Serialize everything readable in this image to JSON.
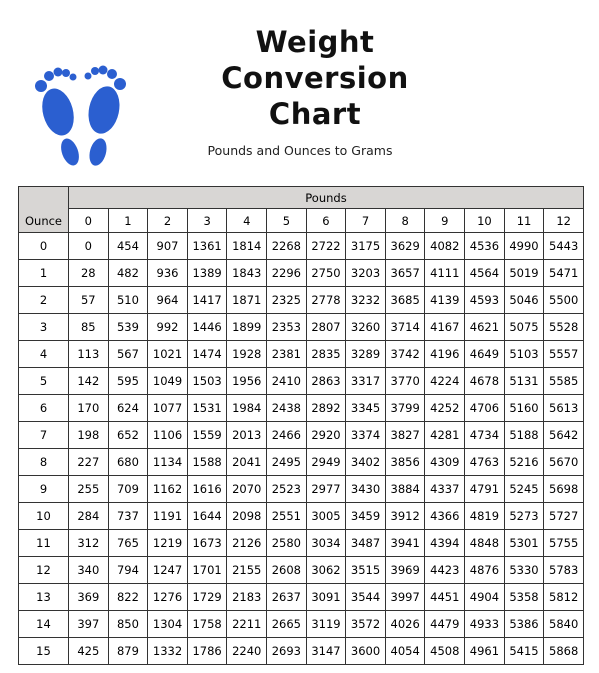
{
  "header": {
    "title": "Weight Conversion Chart",
    "subtitle": "Pounds and Ounces to Grams"
  },
  "table": {
    "corner": "Ounce",
    "group": "Pounds",
    "columns": [
      0,
      1,
      2,
      3,
      4,
      5,
      6,
      7,
      8,
      9,
      10,
      11,
      12
    ],
    "rows": [
      [
        0,
        0,
        454,
        907,
        1361,
        1814,
        2268,
        2722,
        3175,
        3629,
        4082,
        4536,
        4990,
        5443
      ],
      [
        1,
        28,
        482,
        936,
        1389,
        1843,
        2296,
        2750,
        3203,
        3657,
        4111,
        4564,
        5019,
        5471
      ],
      [
        2,
        57,
        510,
        964,
        1417,
        1871,
        2325,
        2778,
        3232,
        3685,
        4139,
        4593,
        5046,
        5500
      ],
      [
        3,
        85,
        539,
        992,
        1446,
        1899,
        2353,
        2807,
        3260,
        3714,
        4167,
        4621,
        5075,
        5528
      ],
      [
        4,
        113,
        567,
        1021,
        1474,
        1928,
        2381,
        2835,
        3289,
        3742,
        4196,
        4649,
        5103,
        5557
      ],
      [
        5,
        142,
        595,
        1049,
        1503,
        1956,
        2410,
        2863,
        3317,
        3770,
        4224,
        4678,
        5131,
        5585
      ],
      [
        6,
        170,
        624,
        1077,
        1531,
        1984,
        2438,
        2892,
        3345,
        3799,
        4252,
        4706,
        5160,
        5613
      ],
      [
        7,
        198,
        652,
        1106,
        1559,
        2013,
        2466,
        2920,
        3374,
        3827,
        4281,
        4734,
        5188,
        5642
      ],
      [
        8,
        227,
        680,
        1134,
        1588,
        2041,
        2495,
        2949,
        3402,
        3856,
        4309,
        4763,
        5216,
        5670
      ],
      [
        9,
        255,
        709,
        1162,
        1616,
        2070,
        2523,
        2977,
        3430,
        3884,
        4337,
        4791,
        5245,
        5698
      ],
      [
        10,
        284,
        737,
        1191,
        1644,
        2098,
        2551,
        3005,
        3459,
        3912,
        4366,
        4819,
        5273,
        5727
      ],
      [
        11,
        312,
        765,
        1219,
        1673,
        2126,
        2580,
        3034,
        3487,
        3941,
        4394,
        4848,
        5301,
        5755
      ],
      [
        12,
        340,
        794,
        1247,
        1701,
        2155,
        2608,
        3062,
        3515,
        3969,
        4423,
        4876,
        5330,
        5783
      ],
      [
        13,
        369,
        822,
        1276,
        1729,
        2183,
        2637,
        3091,
        3544,
        3997,
        4451,
        4904,
        5358,
        5812
      ],
      [
        14,
        397,
        850,
        1304,
        1758,
        2211,
        2665,
        3119,
        3572,
        4026,
        4479,
        4933,
        5386,
        5840
      ],
      [
        15,
        425,
        879,
        1332,
        1786,
        2240,
        2693,
        3147,
        3600,
        4054,
        4508,
        4961,
        5415,
        5868
      ]
    ]
  }
}
